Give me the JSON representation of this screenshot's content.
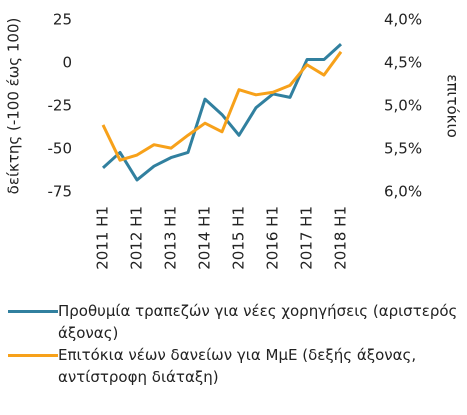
{
  "chart_data": {
    "type": "line",
    "ylabel": "δείκτης (-100 έως 100)",
    "y2label": "επιτόκιο",
    "categories": [
      "2011 H1",
      null,
      "2012 H1",
      null,
      "2013 H1",
      null,
      "2014 H1",
      null,
      "2015 H1",
      null,
      "2016 H1",
      null,
      "2017 H1",
      null,
      "2018 H1"
    ],
    "ylim": [
      -75,
      25
    ],
    "yticks": [
      25,
      0,
      -25,
      -50,
      -75
    ],
    "y2lim": [
      6.0,
      4.0
    ],
    "y2ticks": [
      {
        "value": 4.0,
        "label": "4,0%"
      },
      {
        "value": 4.5,
        "label": "4,5%"
      },
      {
        "value": 5.0,
        "label": "5,0%"
      },
      {
        "value": 5.5,
        "label": "5,5%"
      },
      {
        "value": 6.0,
        "label": "6,0%"
      }
    ],
    "grid": false,
    "series": [
      {
        "name": "Προθυμία τραπεζών για νέες χορηγήσεις (αριστερός άξονας)",
        "color": "#31809f",
        "values": [
          -61,
          -52,
          -68,
          -60,
          -55,
          -52,
          -21,
          -30,
          -42,
          -26,
          -18,
          -20,
          2,
          2,
          11
        ]
      },
      {
        "name": "Επιτόκια νέων δανείων για ΜμΕ (δεξής άξονας, αντίστροφη διάταξη)",
        "color": "#f7a11a",
        "axis": "y2",
        "values": [
          5.22,
          5.63,
          5.57,
          5.45,
          5.49,
          5.34,
          5.2,
          5.3,
          4.81,
          4.87,
          4.84,
          4.76,
          4.52,
          4.64,
          4.37
        ]
      }
    ]
  }
}
